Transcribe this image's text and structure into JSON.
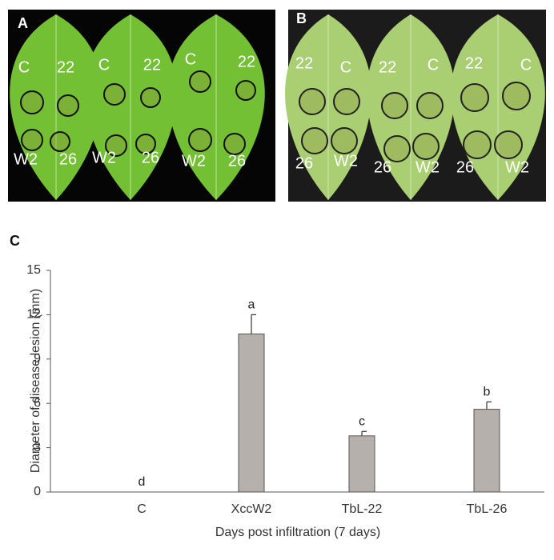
{
  "panels": [
    {
      "label": "A",
      "leaves": [
        {
          "labels": [
            "C",
            "22",
            "W2",
            "26"
          ]
        },
        {
          "labels": [
            "C",
            "22",
            "W2",
            "26"
          ]
        },
        {
          "labels": [
            "C",
            "22",
            "W2",
            "26"
          ]
        }
      ]
    },
    {
      "label": "B",
      "leaves": [
        {
          "labels": [
            "22",
            "C",
            "26",
            "W2"
          ]
        },
        {
          "labels": [
            "22",
            "C",
            "26",
            "W2"
          ]
        },
        {
          "labels": [
            "22",
            "C",
            "26",
            "W2"
          ]
        }
      ]
    }
  ],
  "chart_data": {
    "type": "bar",
    "panel_label": "C",
    "ylabel": "Diameter of disease lesion (mm)",
    "xlabel": "Days post infiltration (7 days)",
    "categories": [
      "C",
      "XccW2",
      "TbL-22",
      "TbL-26"
    ],
    "values": [
      0,
      10.7,
      3.8,
      5.6
    ],
    "errors": [
      null,
      1.3,
      0.3,
      0.5
    ],
    "significance": [
      "d",
      "a",
      "c",
      "b"
    ],
    "color": "#b5b0ac",
    "ylim": [
      0,
      15
    ],
    "yticks": [
      0,
      3,
      6,
      9,
      12,
      15
    ]
  }
}
